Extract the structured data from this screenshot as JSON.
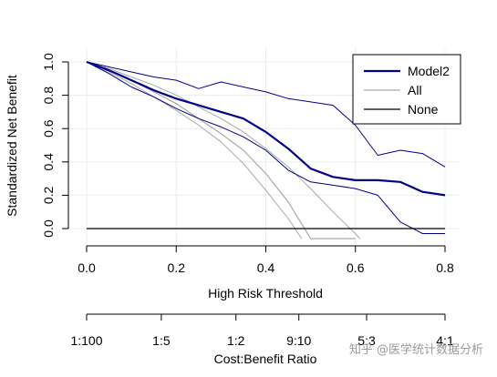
{
  "chart_data": {
    "type": "line",
    "xlabel": "High Risk Threshold",
    "ylabel": "Standardized Net Benefit",
    "xlim": [
      0,
      0.8
    ],
    "ylim": [
      -0.05,
      1.0
    ],
    "x_ticks": [
      "0.0",
      "0.2",
      "0.4",
      "0.6",
      "0.8"
    ],
    "y_ticks": [
      "0.0",
      "0.2",
      "0.4",
      "0.6",
      "0.8",
      "1.0"
    ],
    "grid": true,
    "legend_position": "top-right",
    "colors": {
      "model": "#00008B",
      "all": "#A9A9A9",
      "none": "#000000"
    },
    "series": [
      {
        "name": "Model2",
        "x": [
          0.0,
          0.05,
          0.1,
          0.15,
          0.2,
          0.25,
          0.3,
          0.35,
          0.4,
          0.45,
          0.5,
          0.55,
          0.6,
          0.65,
          0.7,
          0.75,
          0.8
        ],
        "values": [
          1.0,
          0.95,
          0.89,
          0.83,
          0.78,
          0.74,
          0.7,
          0.66,
          0.58,
          0.48,
          0.36,
          0.31,
          0.29,
          0.29,
          0.28,
          0.22,
          0.2
        ]
      },
      {
        "name": "Model2 CI upper",
        "x": [
          0.0,
          0.05,
          0.1,
          0.15,
          0.2,
          0.25,
          0.3,
          0.35,
          0.4,
          0.45,
          0.5,
          0.55,
          0.6,
          0.65,
          0.7,
          0.75,
          0.8
        ],
        "values": [
          1.0,
          0.97,
          0.94,
          0.91,
          0.89,
          0.84,
          0.88,
          0.85,
          0.82,
          0.78,
          0.76,
          0.74,
          0.62,
          0.44,
          0.47,
          0.45,
          0.37
        ]
      },
      {
        "name": "Model2 CI lower",
        "x": [
          0.0,
          0.05,
          0.1,
          0.15,
          0.2,
          0.25,
          0.3,
          0.35,
          0.4,
          0.45,
          0.5,
          0.55,
          0.6,
          0.65,
          0.7,
          0.75,
          0.8
        ],
        "values": [
          1.0,
          0.93,
          0.85,
          0.79,
          0.72,
          0.66,
          0.61,
          0.55,
          0.47,
          0.35,
          0.28,
          0.26,
          0.24,
          0.2,
          0.04,
          -0.03,
          -0.03
        ]
      },
      {
        "name": "All",
        "x": [
          0.0,
          0.05,
          0.1,
          0.15,
          0.2,
          0.25,
          0.3,
          0.35,
          0.4,
          0.45,
          0.5,
          0.55,
          0.6
        ],
        "values": [
          1.0,
          0.95,
          0.89,
          0.82,
          0.75,
          0.66,
          0.57,
          0.47,
          0.33,
          0.16,
          -0.06,
          -0.06,
          -0.06
        ]
      },
      {
        "name": "All CI upper",
        "x": [
          0.0,
          0.05,
          0.1,
          0.15,
          0.2,
          0.25,
          0.3,
          0.35,
          0.4,
          0.45,
          0.5,
          0.55,
          0.6,
          0.61
        ],
        "values": [
          1.0,
          0.96,
          0.91,
          0.86,
          0.8,
          0.73,
          0.66,
          0.58,
          0.48,
          0.37,
          0.24,
          0.1,
          -0.03,
          -0.06
        ]
      },
      {
        "name": "All CI lower",
        "x": [
          0.0,
          0.05,
          0.1,
          0.15,
          0.2,
          0.25,
          0.3,
          0.35,
          0.4,
          0.45,
          0.48
        ],
        "values": [
          1.0,
          0.94,
          0.87,
          0.79,
          0.71,
          0.62,
          0.52,
          0.39,
          0.23,
          0.06,
          -0.06
        ]
      },
      {
        "name": "None",
        "x": [
          0.0,
          0.8
        ],
        "values": [
          0.0,
          0.0
        ]
      }
    ],
    "legend": [
      "Model2",
      "All",
      "None"
    ],
    "secondary_axis": {
      "title": "Cost:Benefit Ratio",
      "ticks": [
        "1:100",
        "1:5",
        "1:2",
        "9:10",
        "5:3",
        "4:1"
      ],
      "tick_thresholds": [
        0.0,
        0.1667,
        0.3333,
        0.4737,
        0.625,
        0.8
      ]
    }
  },
  "watermark": "知乎 @医学统计数据分析"
}
